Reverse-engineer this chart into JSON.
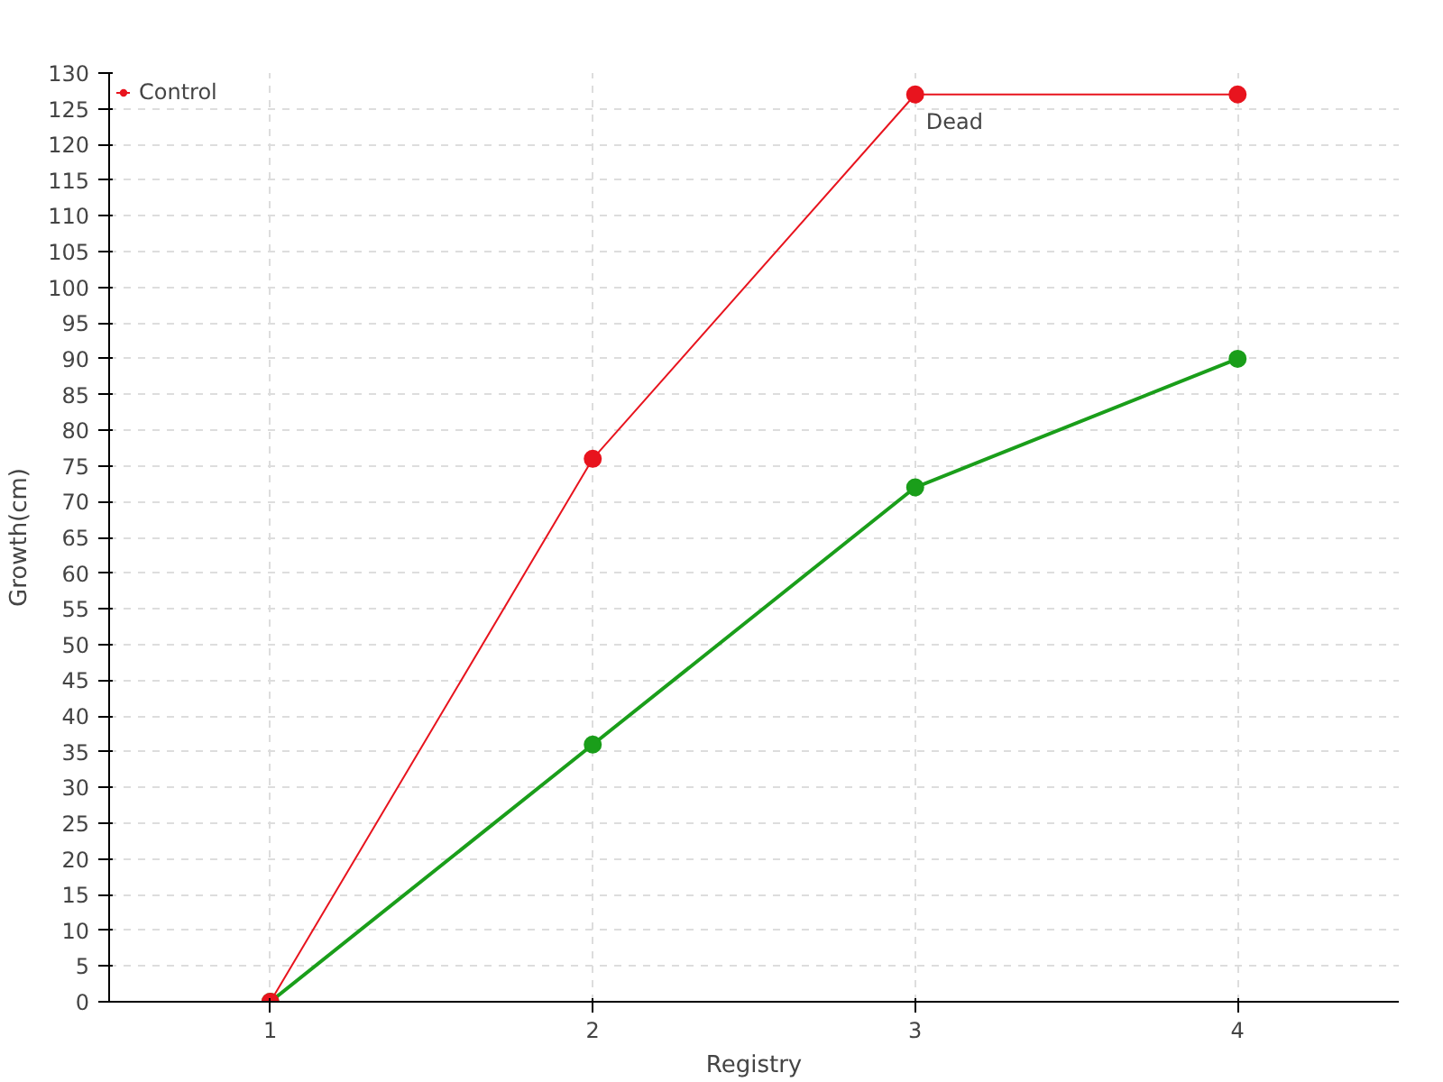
{
  "chart_data": {
    "type": "line",
    "xlabel": "Registry",
    "ylabel": "Growth(cm)",
    "x": [
      1,
      2,
      3,
      4
    ],
    "series": [
      {
        "color": "#1a9e1a",
        "values": [
          0,
          36,
          72,
          90
        ]
      },
      {
        "name": "Control",
        "color": "#e8141e",
        "values": [
          0,
          76,
          127,
          127
        ]
      }
    ],
    "xlim": [
      0.5,
      4.5
    ],
    "xticks": [
      1,
      2,
      3,
      4
    ],
    "ylim": [
      0,
      130
    ],
    "yticks": [
      0,
      5,
      10,
      15,
      20,
      25,
      30,
      35,
      40,
      45,
      50,
      55,
      60,
      65,
      70,
      75,
      80,
      85,
      90,
      95,
      100,
      105,
      110,
      115,
      120,
      125,
      130
    ],
    "annotations": [
      {
        "text": "Dead",
        "x": 3,
        "y": 127
      }
    ],
    "grid": true,
    "legend": "top left",
    "marker": "circle",
    "line_style": "solid"
  }
}
